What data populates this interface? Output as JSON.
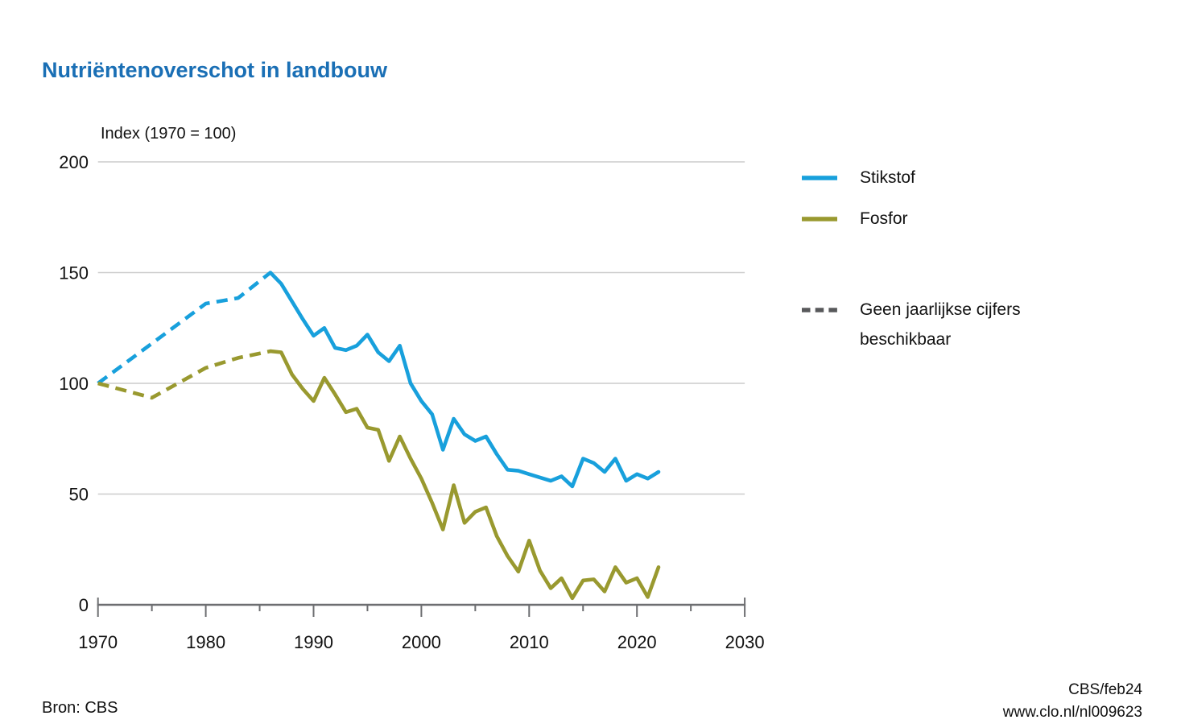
{
  "title": "Nutriëntenoverschot in landbouw",
  "footer": {
    "source": "Bron: CBS",
    "credit": "CBS/feb24",
    "url": "www.clo.nl/nl009623"
  },
  "legend": {
    "note_line1": "Geen jaarlijkse cijfers",
    "note_line2": "beschikbaar",
    "note_color": "#58595b"
  },
  "chart_data": {
    "type": "line",
    "title": "Nutriëntenoverschot in landbouw",
    "ylabel": "Index (1970 = 100)",
    "xlabel": "",
    "ylim": [
      0,
      200
    ],
    "xlim": [
      1970,
      2030
    ],
    "y_ticks": [
      0,
      50,
      100,
      150,
      200
    ],
    "x_major_ticks": [
      1970,
      1980,
      1990,
      2000,
      2010,
      2020,
      2030
    ],
    "x_minor_ticks": [
      1975,
      1985,
      1995,
      2005,
      2015,
      2025
    ],
    "grid": "horizontal",
    "legend_position": "right",
    "colors": {
      "grid": "#cccccc",
      "axis": "#6d6e71",
      "text": "#111111"
    },
    "dashed_note": "Dashed segments (1970-1986) mean no annual figures available",
    "series": [
      {
        "name": "Stikstof",
        "color": "#18a0dc",
        "dashed_points": [
          [
            1970,
            100
          ],
          [
            1980,
            136
          ],
          [
            1983,
            138.5
          ],
          [
            1986,
            150
          ]
        ],
        "solid_points": [
          [
            1986,
            150
          ],
          [
            1987,
            145
          ],
          [
            1988,
            137
          ],
          [
            1989,
            129
          ],
          [
            1990,
            121.5
          ],
          [
            1991,
            125
          ],
          [
            1992,
            116
          ],
          [
            1993,
            115
          ],
          [
            1994,
            117
          ],
          [
            1995,
            122
          ],
          [
            1996,
            114
          ],
          [
            1997,
            110
          ],
          [
            1998,
            117
          ],
          [
            1999,
            100
          ],
          [
            2000,
            92
          ],
          [
            2001,
            86
          ],
          [
            2002,
            70
          ],
          [
            2003,
            84
          ],
          [
            2004,
            77
          ],
          [
            2005,
            74
          ],
          [
            2006,
            76
          ],
          [
            2007,
            68
          ],
          [
            2008,
            61
          ],
          [
            2009,
            60.5
          ],
          [
            2010,
            59
          ],
          [
            2011,
            57.5
          ],
          [
            2012,
            56
          ],
          [
            2013,
            58
          ],
          [
            2014,
            53.5
          ],
          [
            2015,
            66
          ],
          [
            2016,
            64
          ],
          [
            2017,
            60
          ],
          [
            2018,
            66
          ],
          [
            2019,
            56
          ],
          [
            2020,
            59
          ],
          [
            2021,
            57
          ],
          [
            2022,
            60
          ]
        ]
      },
      {
        "name": "Fosfor",
        "color": "#99992f",
        "dashed_points": [
          [
            1970,
            100
          ],
          [
            1975,
            93.5
          ],
          [
            1980,
            107
          ],
          [
            1983,
            111.5
          ],
          [
            1986,
            114.5
          ]
        ],
        "solid_points": [
          [
            1986,
            114.5
          ],
          [
            1987,
            114
          ],
          [
            1988,
            104
          ],
          [
            1989,
            97.5
          ],
          [
            1990,
            92
          ],
          [
            1991,
            102.5
          ],
          [
            1992,
            95
          ],
          [
            1993,
            87
          ],
          [
            1994,
            88.5
          ],
          [
            1995,
            80
          ],
          [
            1996,
            79
          ],
          [
            1997,
            65
          ],
          [
            1998,
            76
          ],
          [
            1999,
            66
          ],
          [
            2000,
            57
          ],
          [
            2001,
            46
          ],
          [
            2002,
            34
          ],
          [
            2003,
            54
          ],
          [
            2004,
            37
          ],
          [
            2005,
            42
          ],
          [
            2006,
            44
          ],
          [
            2007,
            31
          ],
          [
            2008,
            22
          ],
          [
            2009,
            15
          ],
          [
            2010,
            29
          ],
          [
            2011,
            15.5
          ],
          [
            2012,
            7.5
          ],
          [
            2013,
            12
          ],
          [
            2014,
            3
          ],
          [
            2015,
            11
          ],
          [
            2016,
            11.5
          ],
          [
            2017,
            6
          ],
          [
            2018,
            17
          ],
          [
            2019,
            10
          ],
          [
            2020,
            12
          ],
          [
            2021,
            3.5
          ],
          [
            2022,
            17
          ]
        ]
      }
    ]
  }
}
